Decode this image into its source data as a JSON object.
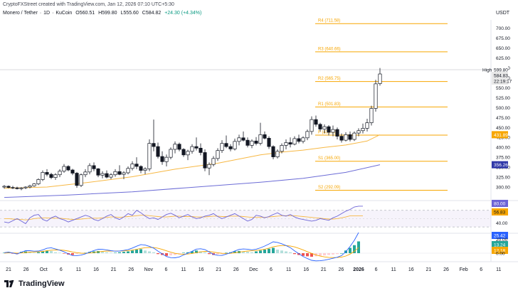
{
  "header": {
    "attribution": "CryptoFXStreet created with TradingView.com, Jan 12, 2026 07:10 UTC+5:30",
    "symbol": "Monero / Tether",
    "interval": "1D",
    "exchange": "KuCoin",
    "open": "O560.51",
    "high": "H599.80",
    "low": "L555.60",
    "close": "C584.82",
    "change": "+24.30 (+4.34%)"
  },
  "footer": {
    "brand": "TradingView"
  },
  "chart_data": {
    "type": "candlestick",
    "currency": "USDT",
    "price_axis": {
      "min": 275,
      "max": 712,
      "ticks": [
        300,
        325,
        350,
        375,
        400,
        425,
        450,
        475,
        500,
        525,
        550,
        575,
        600,
        625,
        650,
        675,
        700
      ]
    },
    "x_axis": {
      "labels": [
        "21",
        "26",
        "Oct",
        "6",
        "11",
        "16",
        "21",
        "26",
        "Nov",
        "6",
        "11",
        "16",
        "21",
        "26",
        "Dec",
        "6",
        "11",
        "16",
        "21",
        "26",
        "2026",
        "6",
        "11",
        "16",
        "21",
        "26",
        "Feb",
        "6",
        "11"
      ]
    },
    "high_label": "High",
    "high_value": "599.80",
    "last_price": "584.83",
    "countdown": "22:19:17",
    "pivot_levels": [
      {
        "label": "R4 (711.58)",
        "value": 711.58
      },
      {
        "label": "R3 (640.66)",
        "value": 640.66
      },
      {
        "label": "R2 (565.75)",
        "value": 565.75
      },
      {
        "label": "R1 (501.83)",
        "value": 501.83
      },
      {
        "label": "P (430.92)",
        "value": 430.92
      },
      {
        "label": "S1 (365.00)",
        "value": 365.0
      },
      {
        "label": "S2 (292.09)",
        "value": 292.09
      }
    ],
    "ema50_label": "431.89",
    "ema200_label": "356.26",
    "candles": [
      [
        300,
        305,
        296,
        302
      ],
      [
        302,
        304,
        297,
        299
      ],
      [
        299,
        303,
        295,
        298
      ],
      [
        298,
        301,
        294,
        296
      ],
      [
        296,
        300,
        292,
        298
      ],
      [
        298,
        302,
        295,
        300
      ],
      [
        300,
        306,
        297,
        303
      ],
      [
        303,
        310,
        301,
        308
      ],
      [
        308,
        322,
        305,
        319
      ],
      [
        319,
        342,
        315,
        337
      ],
      [
        337,
        345,
        327,
        332
      ],
      [
        332,
        336,
        320,
        324
      ],
      [
        324,
        335,
        318,
        331
      ],
      [
        331,
        345,
        325,
        340
      ],
      [
        340,
        358,
        336,
        352
      ],
      [
        352,
        355,
        340,
        343
      ],
      [
        343,
        346,
        330,
        335
      ],
      [
        335,
        338,
        298,
        304
      ],
      [
        304,
        334,
        300,
        331
      ],
      [
        331,
        345,
        325,
        338
      ],
      [
        338,
        360,
        332,
        354
      ],
      [
        354,
        362,
        340,
        346
      ],
      [
        346,
        348,
        325,
        330
      ],
      [
        330,
        340,
        322,
        334
      ],
      [
        334,
        342,
        322,
        325
      ],
      [
        325,
        335,
        320,
        331
      ],
      [
        331,
        345,
        326,
        339
      ],
      [
        339,
        355,
        330,
        332
      ],
      [
        332,
        340,
        320,
        336
      ],
      [
        336,
        352,
        332,
        347
      ],
      [
        347,
        365,
        342,
        358
      ],
      [
        358,
        375,
        345,
        352
      ],
      [
        352,
        355,
        335,
        342
      ],
      [
        342,
        350,
        332,
        346
      ],
      [
        346,
        420,
        340,
        410
      ],
      [
        410,
        470,
        390,
        402
      ],
      [
        402,
        412,
        372,
        377
      ],
      [
        377,
        390,
        356,
        364
      ],
      [
        364,
        382,
        352,
        375
      ],
      [
        375,
        400,
        370,
        395
      ],
      [
        395,
        415,
        385,
        408
      ],
      [
        408,
        412,
        390,
        395
      ],
      [
        395,
        398,
        376,
        381
      ],
      [
        381,
        394,
        368,
        390
      ],
      [
        390,
        408,
        384,
        402
      ],
      [
        402,
        425,
        392,
        398
      ],
      [
        398,
        410,
        380,
        387
      ],
      [
        387,
        395,
        340,
        348
      ],
      [
        348,
        362,
        330,
        357
      ],
      [
        357,
        378,
        352,
        372
      ],
      [
        372,
        398,
        366,
        392
      ],
      [
        392,
        418,
        386,
        410
      ],
      [
        410,
        430,
        398,
        402
      ],
      [
        402,
        408,
        390,
        396
      ],
      [
        396,
        422,
        392,
        415
      ],
      [
        415,
        432,
        405,
        424
      ],
      [
        424,
        440,
        415,
        418
      ],
      [
        418,
        425,
        400,
        405
      ],
      [
        405,
        420,
        398,
        416
      ],
      [
        416,
        426,
        405,
        410
      ],
      [
        410,
        462,
        405,
        432
      ],
      [
        432,
        440,
        420,
        423
      ],
      [
        423,
        428,
        396,
        402
      ],
      [
        402,
        405,
        370,
        376
      ],
      [
        376,
        395,
        372,
        390
      ],
      [
        390,
        410,
        385,
        405
      ],
      [
        405,
        420,
        395,
        412
      ],
      [
        412,
        425,
        400,
        408
      ],
      [
        408,
        428,
        405,
        422
      ],
      [
        422,
        432,
        410,
        415
      ],
      [
        415,
        428,
        410,
        424
      ],
      [
        424,
        445,
        418,
        440
      ],
      [
        440,
        478,
        432,
        470
      ],
      [
        470,
        480,
        452,
        458
      ],
      [
        458,
        462,
        440,
        446
      ],
      [
        446,
        458,
        435,
        452
      ],
      [
        452,
        456,
        430,
        438
      ],
      [
        438,
        455,
        428,
        445
      ],
      [
        445,
        450,
        420,
        428
      ],
      [
        428,
        435,
        412,
        418
      ],
      [
        418,
        438,
        415,
        432
      ],
      [
        432,
        440,
        415,
        420
      ],
      [
        420,
        440,
        416,
        436
      ],
      [
        436,
        448,
        428,
        442
      ],
      [
        442,
        460,
        435,
        448
      ],
      [
        448,
        472,
        440,
        462
      ],
      [
        462,
        505,
        455,
        498
      ],
      [
        498,
        570,
        490,
        560
      ],
      [
        560.51,
        599.8,
        555.6,
        584.82
      ]
    ],
    "ema50": [
      [
        0,
        297
      ],
      [
        10,
        300
      ],
      [
        20,
        312
      ],
      [
        30,
        326
      ],
      [
        40,
        345
      ],
      [
        50,
        360
      ],
      [
        60,
        381
      ],
      [
        65,
        388
      ],
      [
        70,
        393
      ],
      [
        75,
        400
      ],
      [
        80,
        406
      ],
      [
        85,
        416
      ],
      [
        88,
        431.89
      ]
    ],
    "ema200": [
      [
        0,
        274
      ],
      [
        15,
        280
      ],
      [
        30,
        288
      ],
      [
        45,
        300
      ],
      [
        60,
        312
      ],
      [
        70,
        322
      ],
      [
        80,
        337
      ],
      [
        88,
        356.26
      ]
    ],
    "rsi": {
      "values": [
        42,
        40,
        45,
        50,
        44,
        38,
        52,
        58,
        60,
        48,
        44,
        52,
        56,
        50,
        47,
        42,
        46,
        50,
        54,
        58,
        55,
        48,
        45,
        50,
        56,
        60,
        52,
        48,
        54,
        62,
        58,
        70,
        64,
        56,
        50,
        52,
        48,
        54,
        60,
        63,
        58,
        52,
        56,
        60,
        54,
        50,
        52,
        56,
        58,
        62,
        55,
        50,
        54,
        58,
        62,
        56,
        50,
        44,
        48,
        58,
        56,
        52,
        55,
        60,
        64,
        58,
        56,
        60,
        54,
        50,
        48,
        46,
        44,
        46,
        50,
        48,
        46,
        52,
        56,
        62,
        68,
        72,
        78,
        80,
        80
      ],
      "ma": [
        50,
        50,
        49,
        48,
        48,
        47,
        48,
        50,
        51,
        52,
        52,
        51,
        51,
        51,
        50,
        49,
        48,
        48,
        49,
        50,
        51,
        51,
        51,
        52,
        53,
        54,
        54,
        53,
        54,
        55,
        56,
        57,
        58,
        58,
        57,
        56,
        55,
        54,
        54,
        55,
        56,
        56,
        55,
        55,
        55,
        54,
        54,
        54,
        55,
        56,
        56,
        55,
        55,
        56,
        56,
        56,
        55,
        54,
        53,
        53,
        53,
        53,
        54,
        55,
        56,
        57,
        57,
        57,
        57,
        56,
        55,
        54,
        53,
        52,
        51,
        50,
        49,
        49,
        50,
        52,
        54,
        56.83,
        56.83,
        56.83,
        56.83
      ],
      "rsi_label": "80.00",
      "ma_label": "56.83",
      "levels": [
        70,
        30
      ]
    },
    "macd": {
      "histogram": [
        0.5,
        0.8,
        -0.5,
        -1,
        1.5,
        2,
        1,
        0.5,
        1,
        2,
        3,
        2.5,
        1,
        0.5,
        -0.5,
        -1.5,
        -2,
        -1,
        -0.5,
        0.5,
        1.5,
        2,
        2.5,
        1.5,
        1,
        0.5,
        0.5,
        1,
        1.5,
        2,
        3,
        4,
        4.5,
        3,
        2,
        1,
        -1,
        -2,
        -3,
        -2.5,
        -2,
        -1,
        0.5,
        1,
        2,
        3,
        2,
        1,
        -1,
        -2,
        -1.5,
        -1,
        0.5,
        1,
        2,
        2.5,
        2,
        1.5,
        1,
        2,
        3,
        4,
        5,
        6,
        4,
        3,
        2,
        1,
        -1,
        -2,
        -3,
        -3.5,
        -4,
        -3.5,
        -3,
        -2.5,
        -2,
        -1.5,
        -1,
        0,
        3,
        6,
        9,
        13.24
      ],
      "macd_label": "25.42",
      "hist_label": "13.24",
      "signal_label": "12.18"
    }
  }
}
